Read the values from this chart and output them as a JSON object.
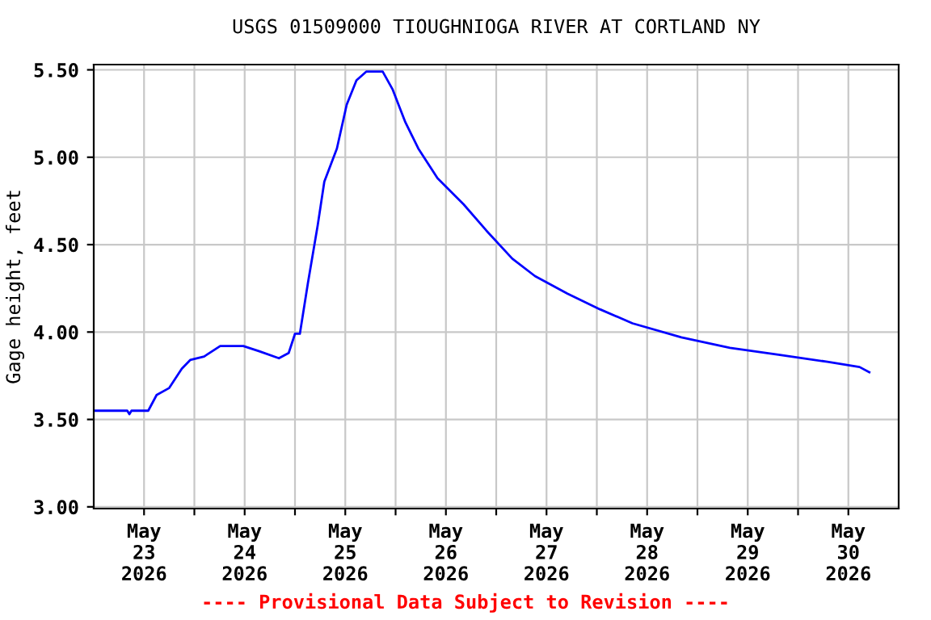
{
  "chart_data": {
    "type": "line",
    "title": "USGS 01509000 TIOUGHNIOGA RIVER AT CORTLAND NY",
    "ylabel": "Gage height, feet",
    "annotations": [
      "---- Provisional Data Subject to Revision ----"
    ],
    "x": [
      "2026-05-23T00:00",
      "2026-05-23T08:00",
      "2026-05-23T08:30",
      "2026-05-23T09:00",
      "2026-05-23T13:00",
      "2026-05-23T15:00",
      "2026-05-23T18:00",
      "2026-05-23T21:00",
      "2026-05-23T23:00",
      "2026-05-24T02:20",
      "2026-05-24T06:10",
      "2026-05-24T11:40",
      "2026-05-24T15:30",
      "2026-05-24T20:10",
      "2026-05-24T22:30",
      "2026-05-25T00:00",
      "2026-05-25T01:10",
      "2026-05-25T03:05",
      "2026-05-25T05:25",
      "2026-05-25T07:00",
      "2026-05-25T10:00",
      "2026-05-25T12:20",
      "2026-05-25T14:40",
      "2026-05-25T17:00",
      "2026-05-25T20:55",
      "2026-05-25T23:15",
      "2026-05-26T02:20",
      "2026-05-26T05:25",
      "2026-05-26T10:00",
      "2026-05-26T16:15",
      "2026-05-26T21:40",
      "2026-05-27T03:50",
      "2026-05-27T09:15",
      "2026-05-27T17:00",
      "2026-05-28T00:45",
      "2026-05-28T08:30",
      "2026-05-28T20:10",
      "2026-05-29T07:45",
      "2026-05-29T19:20",
      "2026-05-30T07:00",
      "2026-05-30T14:40",
      "2026-05-30T17:00"
    ],
    "series": [
      {
        "color": "#0000ff",
        "values": [
          3.55,
          3.55,
          3.53,
          3.55,
          3.55,
          3.64,
          3.68,
          3.79,
          3.84,
          3.86,
          3.92,
          3.92,
          3.89,
          3.85,
          3.88,
          3.99,
          3.99,
          4.28,
          4.61,
          4.86,
          5.05,
          5.3,
          5.44,
          5.49,
          5.49,
          5.39,
          5.2,
          5.05,
          4.88,
          4.73,
          4.58,
          4.42,
          4.32,
          4.22,
          4.13,
          4.05,
          3.97,
          3.91,
          3.87,
          3.83,
          3.8,
          3.77
        ]
      }
    ],
    "xlim": [
      "2026-05-23T00:00",
      "2026-05-31T00:00"
    ],
    "xticks": [
      {
        "value": "2026-05-23T12:00",
        "label": "May\n23\n2026"
      },
      {
        "value": "2026-05-24T12:00",
        "label": "May\n24\n2026"
      },
      {
        "value": "2026-05-25T12:00",
        "label": "May\n25\n2026"
      },
      {
        "value": "2026-05-26T12:00",
        "label": "May\n26\n2026"
      },
      {
        "value": "2026-05-27T12:00",
        "label": "May\n27\n2026"
      },
      {
        "value": "2026-05-28T12:00",
        "label": "May\n28\n2026"
      },
      {
        "value": "2026-05-29T12:00",
        "label": "May\n29\n2026"
      },
      {
        "value": "2026-05-30T12:00",
        "label": "May\n30\n2026"
      },
      {
        "value": "2026-05-24T00:00",
        "label": null
      },
      {
        "value": "2026-05-25T00:00",
        "label": null
      },
      {
        "value": "2026-05-26T00:00",
        "label": null
      },
      {
        "value": "2026-05-27T00:00",
        "label": null
      },
      {
        "value": "2026-05-28T00:00",
        "label": null
      },
      {
        "value": "2026-05-29T00:00",
        "label": null
      },
      {
        "value": "2026-05-30T00:00",
        "label": null
      }
    ],
    "ylim": [
      2.99,
      5.53
    ],
    "yticks": [
      {
        "value": 3.0,
        "label": "3.00"
      },
      {
        "value": 3.5,
        "label": "3.50"
      },
      {
        "value": 4.0,
        "label": "4.00"
      },
      {
        "value": 4.5,
        "label": "4.50"
      },
      {
        "value": 5.0,
        "label": "5.00"
      },
      {
        "value": 5.5,
        "label": "5.50"
      }
    ],
    "grid": true,
    "legend": false,
    "marker": "none",
    "line_style": "solid"
  }
}
